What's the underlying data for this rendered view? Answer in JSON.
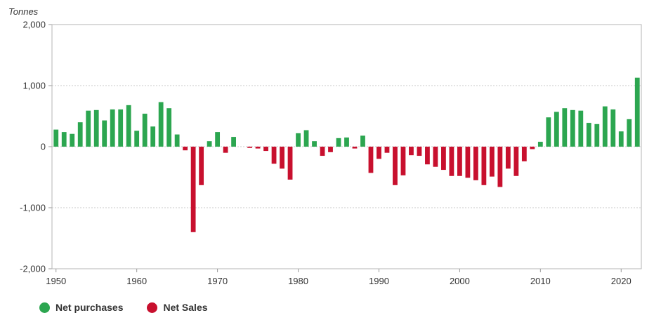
{
  "chart_data": {
    "type": "bar",
    "unit_label": "Tonnes",
    "ylim": [
      -2000,
      2000
    ],
    "yticks": [
      2000,
      1000,
      0,
      -1000,
      -2000
    ],
    "ytick_labels": [
      "2,000",
      "1,000",
      "0",
      "-1,000",
      "-2,000"
    ],
    "xlim": [
      1949.5,
      2022.5
    ],
    "xticks": [
      1950,
      1960,
      1970,
      1980,
      1990,
      2000,
      2010,
      2020
    ],
    "xtick_labels": [
      "1950",
      "1960",
      "1970",
      "1980",
      "1990",
      "2000",
      "2010",
      "2020"
    ],
    "years": [
      1950,
      1951,
      1952,
      1953,
      1954,
      1955,
      1956,
      1957,
      1958,
      1959,
      1960,
      1961,
      1962,
      1963,
      1964,
      1965,
      1966,
      1967,
      1968,
      1969,
      1970,
      1971,
      1972,
      1973,
      1974,
      1975,
      1976,
      1977,
      1978,
      1979,
      1980,
      1981,
      1982,
      1983,
      1984,
      1985,
      1986,
      1987,
      1988,
      1989,
      1990,
      1991,
      1992,
      1993,
      1994,
      1995,
      1996,
      1997,
      1998,
      1999,
      2000,
      2001,
      2002,
      2003,
      2004,
      2005,
      2006,
      2007,
      2008,
      2009,
      2010,
      2011,
      2012,
      2013,
      2014,
      2015,
      2016,
      2017,
      2018,
      2019,
      2020,
      2021,
      2022
    ],
    "values": [
      280,
      240,
      210,
      400,
      590,
      600,
      430,
      610,
      610,
      680,
      260,
      540,
      330,
      730,
      630,
      200,
      -60,
      -1400,
      -630,
      90,
      240,
      -100,
      160,
      0,
      -20,
      -30,
      -70,
      -280,
      -360,
      -540,
      220,
      270,
      90,
      -150,
      -90,
      140,
      150,
      -30,
      180,
      -430,
      -200,
      -100,
      -630,
      -470,
      -140,
      -150,
      -290,
      -330,
      -380,
      -480,
      -480,
      -510,
      -550,
      -630,
      -490,
      -660,
      -360,
      -480,
      -240,
      -40,
      80,
      480,
      570,
      630,
      600,
      590,
      390,
      370,
      660,
      610,
      250,
      450,
      1130
    ],
    "series": [
      {
        "name": "Net purchases",
        "color": "#2ca650"
      },
      {
        "name": "Net Sales",
        "color": "#c8102e"
      }
    ],
    "grid": true,
    "legend_position": "bottom-left"
  }
}
